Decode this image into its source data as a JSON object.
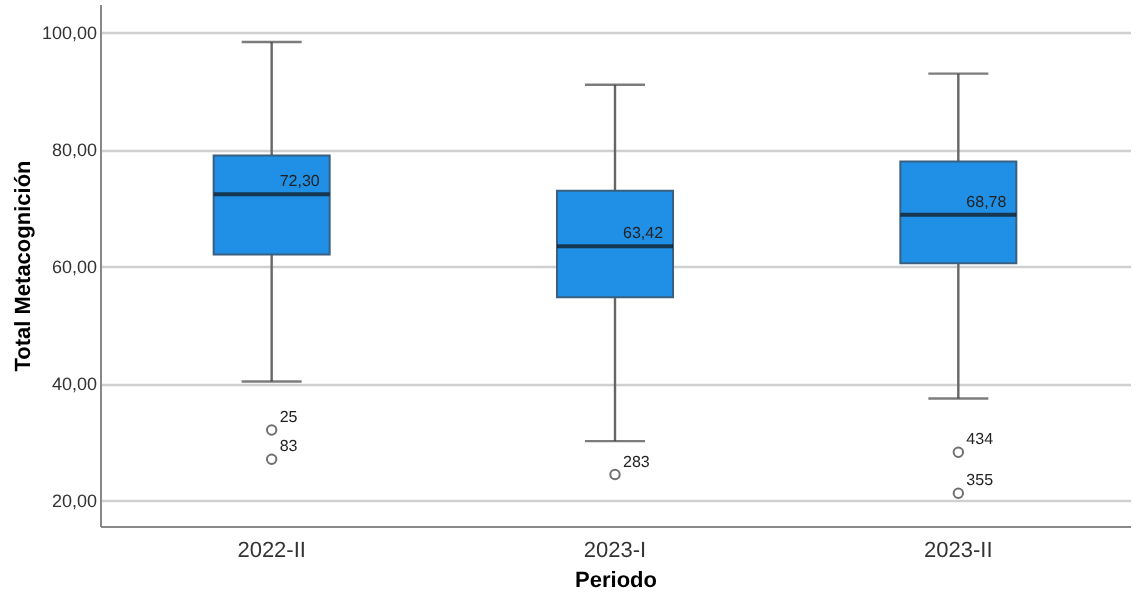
{
  "chart_data": {
    "type": "box",
    "xlabel": "Periodo",
    "ylabel": "Total Metacognición",
    "categories": [
      "2022-II",
      "2023-I",
      "2023-II"
    ],
    "series": [
      {
        "color": "#1f90e6",
        "boxes": [
          {
            "low": 40.3,
            "q1": 62.0,
            "median": 72.3,
            "q3": 78.9,
            "high": 98.3,
            "outliers": [
              32,
              27
            ]
          },
          {
            "low": 30.1,
            "q1": 54.7,
            "median": 63.42,
            "q3": 72.9,
            "high": 91.0,
            "outliers": [
              24.4
            ]
          },
          {
            "low": 37.4,
            "q1": 60.5,
            "median": 68.78,
            "q3": 77.9,
            "high": 92.9,
            "outliers": [
              28.2,
              21.2
            ]
          }
        ]
      }
    ],
    "ylim": [
      15.6,
      104.8
    ],
    "yticks": [
      {
        "value": 20,
        "label": "20,00"
      },
      {
        "value": 40,
        "label": "40,00"
      },
      {
        "value": 60,
        "label": "60,00"
      },
      {
        "value": 80,
        "label": "80,00"
      },
      {
        "value": 100,
        "label": "100,00"
      }
    ],
    "grid": "y",
    "annotations": [
      {
        "text": "72,30",
        "x": "2022-II",
        "y": 72.3
      },
      {
        "text": "63,42",
        "x": "2023-I",
        "y": 63.42
      },
      {
        "text": "68,78",
        "x": "2023-II",
        "y": 68.78
      },
      "25",
      "83",
      "283",
      "434",
      "355"
    ]
  }
}
